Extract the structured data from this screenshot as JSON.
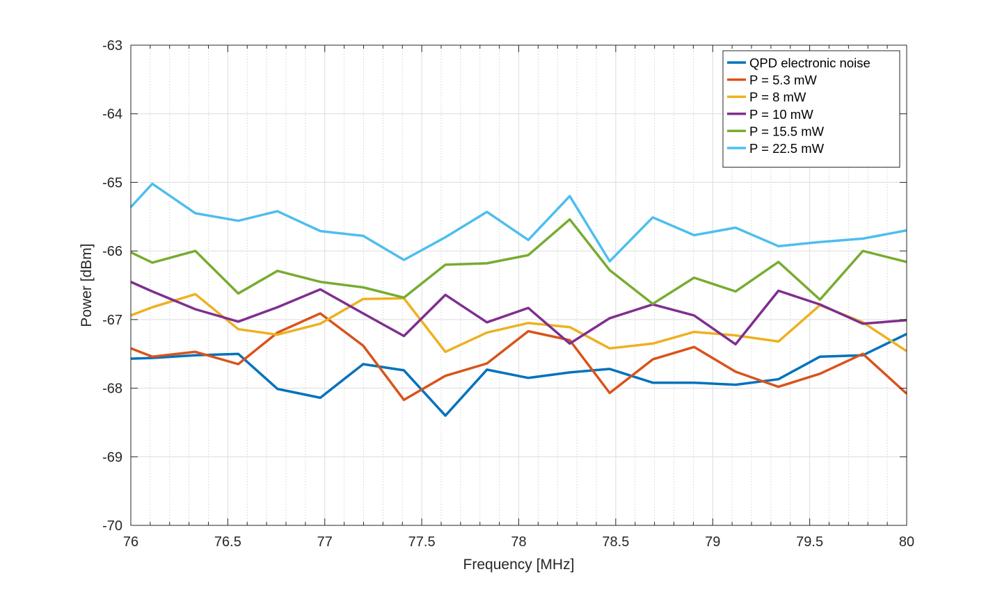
{
  "chart_data": {
    "type": "line",
    "xlabel": "Frequency [MHz]",
    "ylabel": "Power [dBm]",
    "xlim": [
      76,
      80
    ],
    "ylim": [
      -70,
      -63
    ],
    "xticks": [
      76,
      76.5,
      77,
      77.5,
      78,
      78.5,
      79,
      79.5,
      80
    ],
    "xtick_labels": [
      "76",
      "76.5",
      "77",
      "77.5",
      "78",
      "78.5",
      "79",
      "79.5",
      "80"
    ],
    "yticks": [
      -70,
      -69,
      -68,
      -67,
      -66,
      -65,
      -64,
      -63
    ],
    "ytick_labels": [
      "-70",
      "-69",
      "-68",
      "-67",
      "-66",
      "-65",
      "-64",
      "-63"
    ],
    "grid": true,
    "minor_grid_x": true,
    "legend_position": "top-right",
    "x": [
      76,
      76.111,
      76.333,
      76.554,
      76.756,
      76.977,
      77.198,
      77.408,
      77.622,
      77.836,
      78.049,
      78.263,
      78.469,
      78.691,
      78.904,
      79.118,
      79.339,
      79.553,
      79.774,
      80
    ],
    "series": [
      {
        "name": "QPD electronic noise",
        "color": "#0072BD",
        "values": [
          -67.57,
          -67.56,
          -67.52,
          -67.5,
          -68.01,
          -68.14,
          -67.65,
          -67.74,
          -68.4,
          -67.73,
          -67.85,
          -67.77,
          -67.72,
          -67.92,
          -67.92,
          -67.95,
          -67.87,
          -67.54,
          -67.52,
          -67.21
        ]
      },
      {
        "name": "P = 5.3 mW",
        "color": "#D95319",
        "values": [
          -67.42,
          -67.54,
          -67.47,
          -67.65,
          -67.19,
          -66.91,
          -67.38,
          -68.17,
          -67.82,
          -67.64,
          -67.17,
          -67.3,
          -68.07,
          -67.58,
          -67.4,
          -67.76,
          -67.98,
          -67.79,
          -67.5,
          -68.08
        ]
      },
      {
        "name": "P = 8 mW",
        "color": "#EDB120",
        "values": [
          -66.94,
          -66.82,
          -66.63,
          -67.14,
          -67.22,
          -67.06,
          -66.7,
          -66.69,
          -67.47,
          -67.19,
          -67.05,
          -67.11,
          -67.42,
          -67.35,
          -67.18,
          -67.23,
          -67.32,
          -66.79,
          -67.04,
          -67.46
        ]
      },
      {
        "name": "P = 10 mW",
        "color": "#7E2F8E",
        "values": [
          -66.45,
          -66.59,
          -66.85,
          -67.03,
          -66.82,
          -66.56,
          -66.91,
          -67.24,
          -66.64,
          -67.04,
          -66.83,
          -67.35,
          -66.98,
          -66.78,
          -66.94,
          -67.36,
          -66.58,
          -66.78,
          -67.06,
          -67.01
        ]
      },
      {
        "name": "P = 15.5 mW",
        "color": "#77AC30",
        "values": [
          -66.02,
          -66.17,
          -66.0,
          -66.62,
          -66.29,
          -66.45,
          -66.53,
          -66.68,
          -66.2,
          -66.18,
          -66.06,
          -65.54,
          -66.28,
          -66.77,
          -66.39,
          -66.59,
          -66.16,
          -66.71,
          -66.0,
          -66.16
        ]
      },
      {
        "name": "P = 22.5 mW",
        "color": "#4DBEEE",
        "values": [
          -65.36,
          -65.02,
          -65.45,
          -65.56,
          -65.42,
          -65.71,
          -65.78,
          -66.13,
          -65.8,
          -65.43,
          -65.84,
          -65.2,
          -66.15,
          -65.51,
          -65.77,
          -65.66,
          -65.93,
          -65.87,
          -65.82,
          -65.7
        ]
      }
    ]
  }
}
